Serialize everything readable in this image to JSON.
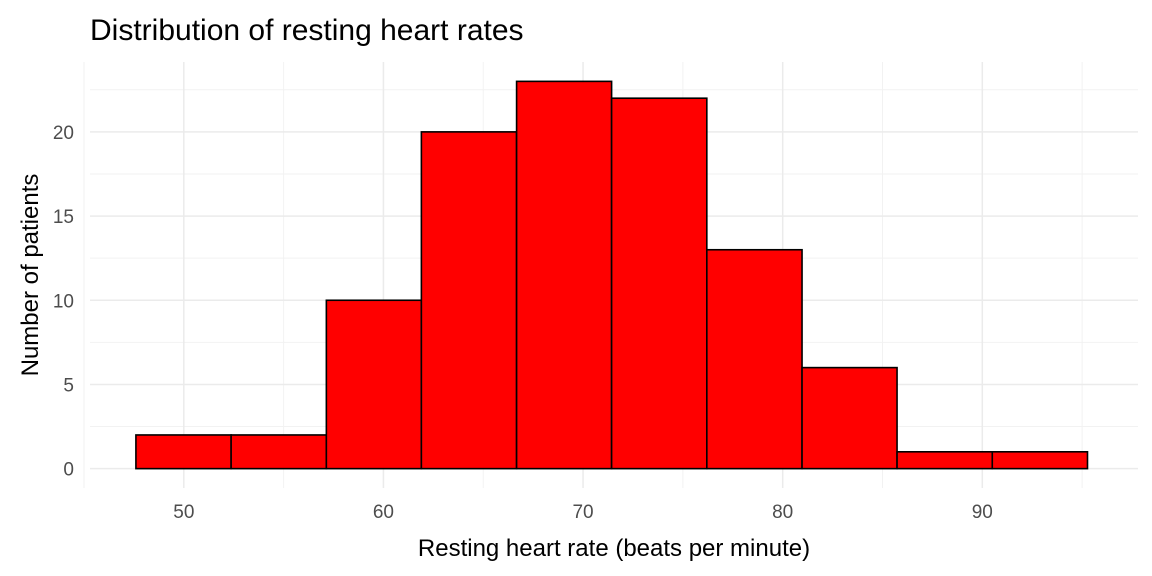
{
  "chart_data": {
    "type": "bar",
    "subtype": "histogram",
    "title": "Distribution of resting heart rates",
    "xlabel": "Resting heart rate (beats per minute)",
    "ylabel": "Number of patients",
    "bin_edges": [
      47.6,
      52.37,
      57.14,
      61.9,
      66.67,
      71.43,
      76.2,
      80.97,
      85.73,
      90.5,
      95.27
    ],
    "values": [
      2,
      2,
      10,
      20,
      23,
      22,
      13,
      6,
      1,
      1
    ],
    "xlim": [
      45.3,
      97.8
    ],
    "ylim": [
      -1.15,
      24.15
    ],
    "x_ticks": [
      50,
      60,
      70,
      80,
      90
    ],
    "y_ticks": [
      0,
      5,
      10,
      15,
      20
    ],
    "bar_fill": "#ff0000",
    "bar_outline": "#000000",
    "grid": true,
    "theme": "minimal"
  }
}
